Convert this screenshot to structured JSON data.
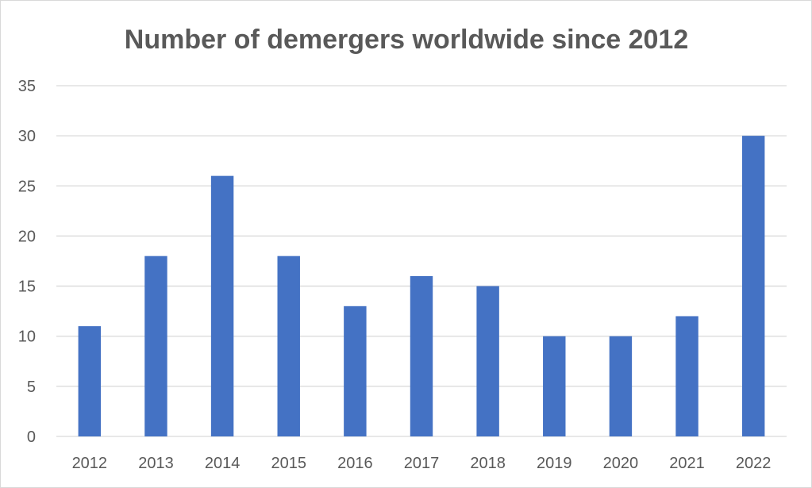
{
  "chart_data": {
    "type": "bar",
    "title": "Number of demergers worldwide since 2012",
    "xlabel": "",
    "ylabel": "",
    "categories": [
      "2012",
      "2013",
      "2014",
      "2015",
      "2016",
      "2017",
      "2018",
      "2019",
      "2020",
      "2021",
      "2022"
    ],
    "values": [
      11,
      18,
      26,
      18,
      13,
      16,
      15,
      10,
      10,
      12,
      30
    ],
    "ylim": [
      0,
      35
    ],
    "yticks": [
      "0",
      "5",
      "10",
      "15",
      "20",
      "25",
      "30",
      "35"
    ],
    "grid": true,
    "legend": "none",
    "bar_color": "#4472c4",
    "grid_color": "#d9d9d9",
    "text_color": "#595959"
  }
}
